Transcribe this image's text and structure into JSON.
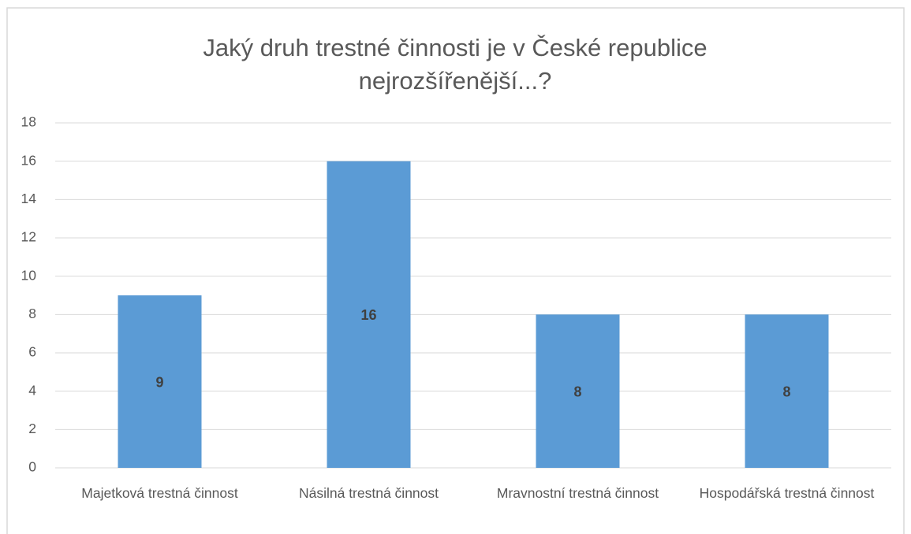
{
  "chart_data": {
    "type": "bar",
    "title": "Jaký druh trestné činnosti je v České republice nejrozšířenější...?",
    "categories": [
      "Majetková trestná činnost",
      "Násilná trestná činnost",
      "Mravnostní trestná činnost",
      "Hospodářská trestná činnost"
    ],
    "values": [
      9,
      16,
      8,
      8
    ],
    "color": "#5b9bd5",
    "ylim": [
      0,
      18
    ],
    "yticks": [
      0,
      2,
      4,
      6,
      8,
      10,
      12,
      14,
      16,
      18
    ],
    "grid": true,
    "data_labels": true
  }
}
